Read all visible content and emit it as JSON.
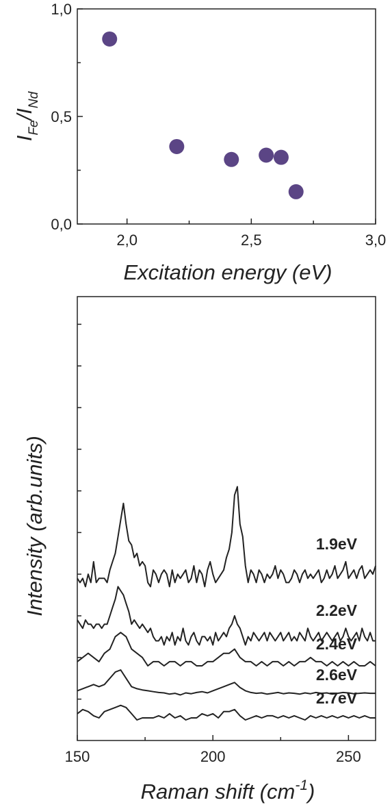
{
  "chart_data": [
    {
      "type": "scatter",
      "xlabel": "Excitation energy (eV)",
      "ylabel": {
        "main": "I",
        "sub1": "Fe",
        "slash": "/I",
        "sub2": "Nd"
      },
      "xlim": [
        1.8,
        3.0
      ],
      "ylim": [
        0.0,
        1.0
      ],
      "xticks": [
        {
          "v": 2.0,
          "label": "2,0"
        },
        {
          "v": 2.5,
          "label": "2,5"
        },
        {
          "v": 3.0,
          "label": "3,0"
        }
      ],
      "yticks": [
        {
          "v": 0.0,
          "label": "0,0"
        },
        {
          "v": 0.5,
          "label": "0,5"
        },
        {
          "v": 1.0,
          "label": "1,0"
        }
      ],
      "marker_color": "#5b4585",
      "points": [
        {
          "x": 1.93,
          "y": 0.86
        },
        {
          "x": 2.2,
          "y": 0.36
        },
        {
          "x": 2.42,
          "y": 0.3
        },
        {
          "x": 2.56,
          "y": 0.32
        },
        {
          "x": 2.62,
          "y": 0.31
        },
        {
          "x": 2.68,
          "y": 0.15
        }
      ]
    },
    {
      "type": "line",
      "xlabel": "Raman shift (cm-1)",
      "xlabel_parts": {
        "text": "Raman shift (cm",
        "sup": "-1",
        "close": ")"
      },
      "ylabel": "Intensity (arb.units)",
      "xlim": [
        150,
        260
      ],
      "ylim": [
        0,
        10
      ],
      "xticks": [
        {
          "v": 150,
          "label": "150"
        },
        {
          "v": 200,
          "label": "200"
        },
        {
          "v": 250,
          "label": "250"
        }
      ],
      "yticks_unlabeled": [
        0.5,
        1.5,
        2.5,
        3.5,
        4.5,
        5.5,
        6.5,
        7.5,
        8.5,
        9.5
      ],
      "series": [
        {
          "name": "1.9eV",
          "x": [
            150,
            151,
            152,
            153,
            154,
            155,
            156,
            157,
            158,
            159,
            160,
            161,
            162,
            163,
            164,
            165,
            166,
            167,
            168,
            169,
            170,
            171,
            172,
            173,
            174,
            175,
            176,
            177,
            178,
            179,
            180,
            181,
            182,
            183,
            184,
            185,
            186,
            187,
            188,
            189,
            190,
            191,
            192,
            193,
            194,
            195,
            196,
            197,
            198,
            199,
            200,
            201,
            202,
            203,
            204,
            205,
            206,
            207,
            208,
            209,
            210,
            211,
            212,
            213,
            214,
            215,
            216,
            217,
            218,
            219,
            220,
            221,
            222,
            223,
            224,
            225,
            226,
            227,
            228,
            229,
            230,
            231,
            232,
            233,
            234,
            235,
            236,
            237,
            238,
            239,
            240,
            241,
            242,
            243,
            244,
            245,
            246,
            247,
            248,
            249,
            250,
            251,
            252,
            253,
            254,
            255,
            256,
            257,
            258,
            259,
            260
          ],
          "y": [
            3.4,
            3.3,
            3.4,
            3.2,
            3.5,
            3.3,
            3.8,
            3.3,
            3.4,
            3.4,
            3.4,
            3.3,
            3.6,
            3.8,
            4.0,
            4.4,
            4.8,
            5.2,
            4.7,
            4.3,
            4.2,
            3.9,
            4.0,
            3.7,
            3.8,
            3.7,
            3.3,
            3.2,
            3.6,
            3.5,
            3.3,
            3.5,
            3.6,
            3.5,
            3.2,
            3.6,
            3.3,
            3.5,
            3.4,
            3.5,
            3.6,
            3.3,
            3.4,
            3.7,
            3.3,
            3.6,
            3.5,
            3.2,
            3.6,
            3.8,
            3.5,
            3.3,
            3.4,
            3.5,
            3.6,
            3.9,
            4.1,
            4.5,
            5.4,
            5.6,
            4.7,
            4.4,
            3.7,
            3.3,
            3.6,
            3.5,
            3.3,
            3.6,
            3.5,
            3.3,
            3.5,
            3.4,
            3.5,
            3.7,
            3.4,
            3.6,
            3.5,
            3.3,
            3.3,
            3.4,
            3.6,
            3.5,
            3.3,
            3.5,
            3.6,
            3.4,
            3.5,
            3.4,
            3.5,
            3.6,
            3.3,
            3.4,
            3.6,
            3.4,
            3.5,
            3.7,
            3.4,
            3.5,
            3.6,
            3.8,
            3.4,
            3.5,
            3.6,
            3.4,
            3.6,
            3.7,
            3.4,
            3.5,
            3.6,
            3.5,
            3.7
          ]
        },
        {
          "name": "2.2eV",
          "x": [
            150,
            151,
            152,
            153,
            154,
            155,
            156,
            157,
            158,
            159,
            160,
            161,
            162,
            163,
            164,
            165,
            166,
            167,
            168,
            169,
            170,
            171,
            172,
            173,
            174,
            175,
            176,
            177,
            178,
            179,
            180,
            181,
            182,
            183,
            184,
            185,
            186,
            187,
            188,
            189,
            190,
            191,
            192,
            193,
            194,
            195,
            196,
            197,
            198,
            199,
            200,
            201,
            202,
            203,
            204,
            205,
            206,
            207,
            208,
            209,
            210,
            211,
            212,
            213,
            214,
            215,
            216,
            217,
            218,
            219,
            220,
            221,
            222,
            223,
            224,
            225,
            226,
            227,
            228,
            229,
            230,
            231,
            232,
            233,
            234,
            235,
            236,
            237,
            238,
            239,
            240,
            241,
            242,
            243,
            244,
            245,
            246,
            247,
            248,
            249,
            250,
            251,
            252,
            253,
            254,
            255,
            256,
            257,
            258,
            259,
            260
          ],
          "y": [
            2.4,
            2.3,
            2.2,
            2.4,
            2.3,
            2.3,
            2.2,
            2.3,
            2.3,
            2.2,
            2.3,
            2.3,
            2.5,
            2.7,
            2.9,
            3.2,
            3.1,
            3.0,
            2.8,
            2.6,
            2.3,
            2.4,
            2.3,
            2.2,
            2.3,
            2.2,
            2.1,
            2.2,
            2.0,
            1.9,
            1.9,
            2.0,
            1.8,
            2.0,
            1.9,
            2.1,
            1.8,
            2.0,
            1.9,
            2.2,
            1.9,
            1.8,
            2.0,
            2.1,
            1.9,
            1.8,
            2.0,
            2.0,
            1.9,
            2.0,
            1.8,
            2.1,
            1.9,
            2.0,
            2.1,
            2.0,
            2.2,
            2.3,
            2.5,
            2.3,
            2.2,
            2.0,
            1.8,
            2.0,
            1.9,
            2.1,
            2.0,
            1.9,
            2.0,
            2.1,
            1.9,
            2.1,
            2.0,
            1.9,
            2.0,
            2.1,
            1.9,
            2.0,
            2.1,
            1.9,
            2.0,
            1.9,
            2.1,
            2.0,
            1.9,
            2.2,
            2.0,
            1.9,
            2.0,
            2.1,
            1.9,
            2.0,
            2.1,
            2.0,
            1.9,
            2.0,
            2.1,
            1.9,
            2.0,
            2.2,
            2.0,
            1.9,
            2.0,
            2.1,
            1.9,
            2.2,
            2.0,
            1.9,
            2.1,
            1.9,
            1.9
          ]
        },
        {
          "name": "2.4eV",
          "x": [
            150,
            152,
            154,
            156,
            158,
            160,
            162,
            164,
            166,
            168,
            170,
            172,
            174,
            176,
            178,
            180,
            182,
            184,
            186,
            188,
            190,
            192,
            194,
            196,
            198,
            200,
            202,
            204,
            206,
            208,
            210,
            212,
            214,
            216,
            218,
            220,
            222,
            224,
            226,
            228,
            230,
            232,
            234,
            236,
            238,
            240,
            242,
            244,
            246,
            248,
            250,
            252,
            254,
            256,
            258,
            260
          ],
          "y": [
            1.4,
            1.5,
            1.6,
            1.5,
            1.4,
            1.6,
            1.7,
            2.0,
            2.1,
            2.0,
            1.7,
            1.6,
            1.5,
            1.3,
            1.4,
            1.4,
            1.3,
            1.4,
            1.4,
            1.3,
            1.4,
            1.4,
            1.3,
            1.3,
            1.4,
            1.4,
            1.5,
            1.6,
            1.6,
            1.7,
            1.5,
            1.4,
            1.4,
            1.3,
            1.4,
            1.3,
            1.4,
            1.4,
            1.3,
            1.4,
            1.3,
            1.4,
            1.4,
            1.5,
            1.4,
            1.4,
            1.3,
            1.4,
            1.3,
            1.4,
            1.3,
            1.4,
            1.3,
            1.3,
            1.4,
            1.3
          ]
        },
        {
          "name": "2.6eV",
          "x": [
            150,
            152,
            154,
            156,
            158,
            160,
            162,
            164,
            166,
            168,
            170,
            172,
            174,
            176,
            178,
            180,
            182,
            184,
            186,
            188,
            190,
            192,
            194,
            196,
            198,
            200,
            202,
            204,
            206,
            208,
            210,
            212,
            214,
            216,
            218,
            220,
            222,
            224,
            226,
            228,
            230,
            232,
            234,
            236,
            238,
            240,
            242,
            244,
            246,
            248,
            250,
            252,
            254,
            256,
            258,
            260
          ],
          "y": [
            0.7,
            0.75,
            0.8,
            0.85,
            0.8,
            0.85,
            1.0,
            1.15,
            1.2,
            1.0,
            0.8,
            0.75,
            0.72,
            0.7,
            0.68,
            0.66,
            0.65,
            0.62,
            0.64,
            0.6,
            0.65,
            0.63,
            0.66,
            0.68,
            0.65,
            0.7,
            0.75,
            0.8,
            0.85,
            0.9,
            0.78,
            0.7,
            0.66,
            0.64,
            0.65,
            0.62,
            0.64,
            0.66,
            0.63,
            0.65,
            0.64,
            0.62,
            0.65,
            0.63,
            0.66,
            0.64,
            0.65,
            0.62,
            0.64,
            0.66,
            0.65,
            0.63,
            0.64,
            0.65,
            0.64,
            0.64
          ]
        },
        {
          "name": "2.7eV",
          "x": [
            150,
            152,
            154,
            156,
            158,
            160,
            162,
            164,
            166,
            168,
            170,
            172,
            174,
            176,
            178,
            180,
            182,
            184,
            186,
            188,
            190,
            192,
            194,
            196,
            198,
            200,
            202,
            204,
            206,
            208,
            210,
            212,
            214,
            216,
            218,
            220,
            222,
            224,
            226,
            228,
            230,
            232,
            234,
            236,
            238,
            240,
            242,
            244,
            246,
            248,
            250,
            252,
            254,
            256,
            258,
            260
          ],
          "y": [
            0.15,
            0.25,
            0.2,
            0.1,
            0.05,
            0.2,
            0.25,
            0.3,
            0.35,
            0.3,
            0.15,
            0.0,
            0.05,
            0.05,
            0.05,
            0.1,
            0.05,
            0.15,
            0.05,
            0.1,
            0.0,
            0.05,
            0.05,
            0.15,
            0.1,
            0.15,
            0.05,
            0.2,
            0.2,
            0.25,
            0.1,
            0.0,
            0.05,
            0.1,
            0.05,
            0.1,
            0.1,
            0.05,
            0.1,
            0.05,
            0.1,
            0.05,
            0.0,
            0.1,
            0.05,
            0.1,
            0.05,
            0.1,
            0.05,
            0.1,
            0.05,
            0.1,
            0.05,
            0.1,
            0.05,
            0.05
          ]
        }
      ]
    }
  ]
}
